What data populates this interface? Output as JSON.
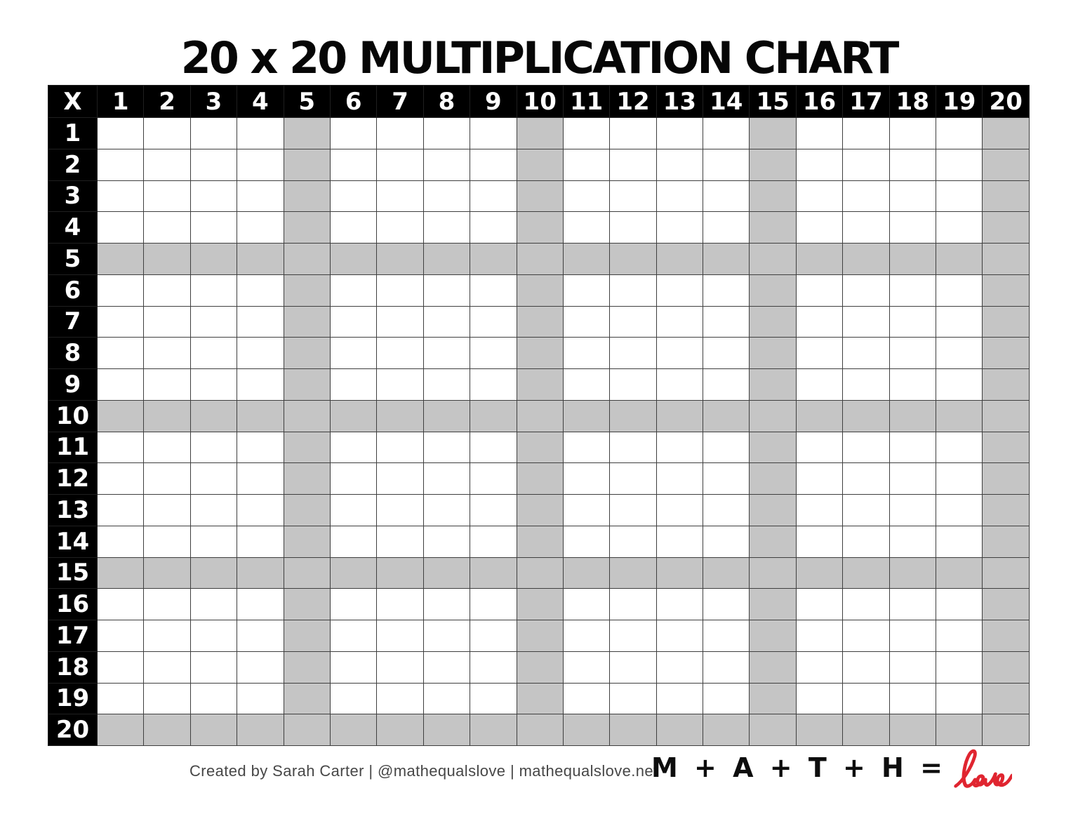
{
  "page": {
    "title": "20 x 20 MULTIPLICATION CHART"
  },
  "table": {
    "corner_label": "X",
    "column_headers": [
      "1",
      "2",
      "3",
      "4",
      "5",
      "6",
      "7",
      "8",
      "9",
      "10",
      "11",
      "12",
      "13",
      "14",
      "15",
      "16",
      "17",
      "18",
      "19",
      "20"
    ],
    "row_headers": [
      "1",
      "2",
      "3",
      "4",
      "5",
      "6",
      "7",
      "8",
      "9",
      "10",
      "11",
      "12",
      "13",
      "14",
      "15",
      "16",
      "17",
      "18",
      "19",
      "20"
    ],
    "shaded_rows": [
      5,
      10,
      15,
      20
    ],
    "shaded_columns": [
      5,
      10,
      15,
      20
    ],
    "cells_blank": true
  },
  "colors": {
    "header_bg": "#000000",
    "header_text": "#ffffff",
    "shaded_cell": "#c5c5c5",
    "grid_line": "#3f3f3f",
    "love_red": "#e02530"
  },
  "footer": {
    "attribution": "Created by Sarah Carter | @mathequalslove | mathequalslove.net",
    "logo_text": "M + A + T + H =",
    "logo_script": "love"
  }
}
